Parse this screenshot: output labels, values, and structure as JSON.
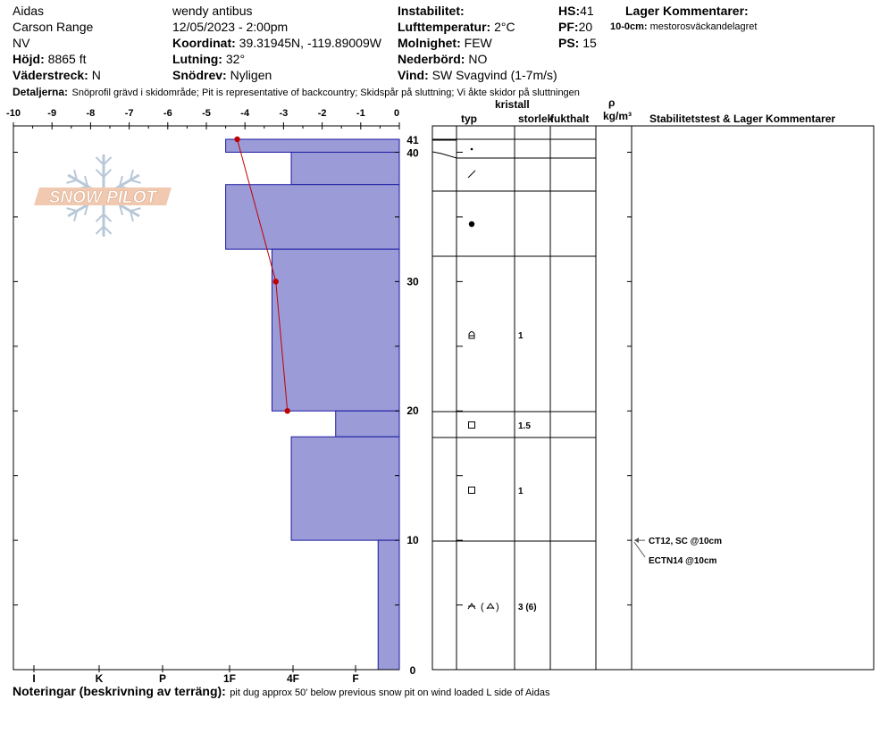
{
  "header": {
    "location_name": "Aidas",
    "range": "Carson Range",
    "state": "NV",
    "elevation_label": "Höjd:",
    "elevation_value": "8865 ft",
    "aspect_label": "Väderstreck:",
    "aspect_value": "N",
    "observer": "wendy antibus",
    "datetime": "12/05/2023 - 2:00pm",
    "coord_label": "Koordinat:",
    "coord_value": "39.31945N, -119.89009W",
    "slope_label": "Lutning:",
    "slope_value": "32°",
    "drift_label": "Snödrev:",
    "drift_value": "Nyligen",
    "instability_label": "Instabilitet:",
    "airtemp_label": "Lufttemperatur:",
    "airtemp_value": "2°C",
    "cloud_label": "Molnighet:",
    "cloud_value": "FEW",
    "precip_label": "Nederbörd:",
    "precip_value": "NO",
    "wind_label": "Vind:",
    "wind_value": "SW  Svagvind (1-7m/s)",
    "hs_label": "HS:",
    "hs_value": "41",
    "pf_label": "PF:",
    "pf_value": "20",
    "ps_label": "PS:",
    "ps_value": "15",
    "layer_comments_label": "Lager Kommentarer:",
    "layer_comment_depth": "10-0cm:",
    "layer_comment_text": "mestorosväckandelagret",
    "details_label": "Detaljerna:",
    "details_text": "Snöprofil grävd i skidområde;  Pit is representative of backcountry;  Skidspår på sluttning;  Vi åkte skidor på sluttningen"
  },
  "table_headers": {
    "crystal": "kristall",
    "type": "typ",
    "size": "storlek",
    "moisture": "fukthalt",
    "rho": "ρ",
    "density_unit": "kg/m³",
    "stability": "Stabilitetstest & Lager Kommentarer"
  },
  "notes": {
    "label": "Noteringar (beskrivning av terräng):",
    "text": "pit dug approx 50' below previous snow pit on wind loaded L side of Aidas"
  },
  "logo_text": "SNOW PILOT",
  "colors": {
    "hardness_fill": "#9b9bd8",
    "hardness_stroke": "#1a1aa0",
    "temp_line": "#c00000",
    "temp_point": "#c00000"
  },
  "chart_data": {
    "type": "snow_profile",
    "temp_axis": {
      "ticks": [
        -10,
        -9,
        -8,
        -7,
        -6,
        -5,
        -4,
        -3,
        -2,
        -1,
        0
      ],
      "range": [
        -10,
        0
      ]
    },
    "hardness_axis": {
      "labels": [
        "I",
        "K",
        "P",
        "1F",
        "4F",
        "F"
      ]
    },
    "depth_axis": {
      "range": [
        0,
        41
      ],
      "labels": [
        41,
        40,
        30,
        20,
        10,
        0
      ]
    },
    "layers": [
      {
        "top": 41,
        "bottom": 40,
        "hardness_temp_scale": -4.5,
        "grain": "small-dot",
        "size": ""
      },
      {
        "top": 40,
        "bottom": 37.5,
        "hardness_temp_scale": -2.8,
        "grain": "slash",
        "size": ""
      },
      {
        "top": 37.5,
        "bottom": 32.5,
        "hardness_temp_scale": -4.5,
        "grain": "dot",
        "size": ""
      },
      {
        "top": 32.5,
        "bottom": 20,
        "hardness_temp_scale": -3.3,
        "grain": "faceted-rounded",
        "size": "1"
      },
      {
        "top": 20,
        "bottom": 18,
        "hardness_temp_scale": -1.65,
        "grain": "square",
        "size": "1.5"
      },
      {
        "top": 18,
        "bottom": 10,
        "hardness_temp_scale": -2.8,
        "grain": "square",
        "size": "1"
      },
      {
        "top": 10,
        "bottom": 0,
        "hardness_temp_scale": -0.55,
        "grain": "depth-hoar",
        "size": "3 (6)"
      }
    ],
    "temperature_profile": [
      {
        "depth": 41,
        "temp": -4.2
      },
      {
        "depth": 30,
        "temp": -3.2
      },
      {
        "depth": 20,
        "temp": -2.9
      }
    ],
    "stability_tests": [
      {
        "depth": 10,
        "result": "CT12, SC @10cm"
      },
      {
        "depth": 10,
        "result": "ECTN14 @10cm"
      }
    ]
  }
}
